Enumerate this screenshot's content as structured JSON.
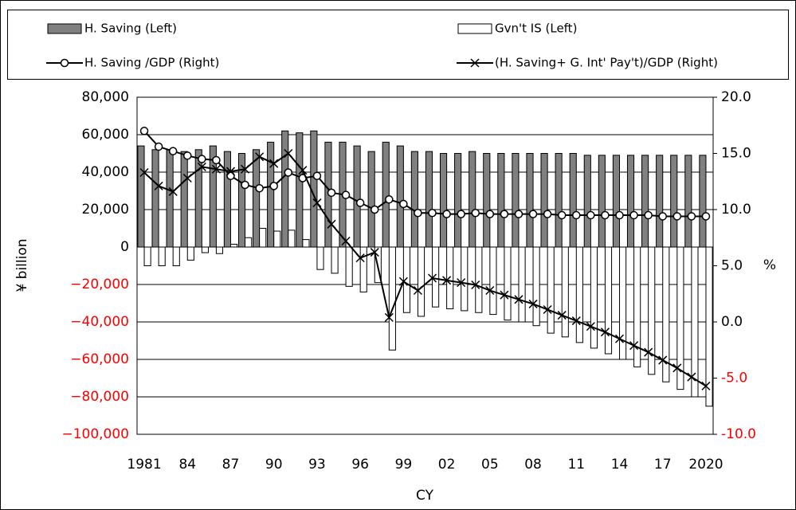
{
  "chart_data": {
    "type": "bar_line",
    "categories": [
      "1981",
      null,
      null,
      "84",
      null,
      null,
      "87",
      null,
      null,
      "90",
      null,
      null,
      "93",
      null,
      null,
      "96",
      null,
      null,
      "99",
      null,
      null,
      "02",
      null,
      null,
      "05",
      null,
      null,
      "08",
      null,
      null,
      "11",
      null,
      null,
      "14",
      null,
      null,
      "17",
      null,
      null,
      "2020"
    ],
    "series": [
      {
        "name": "H. Saving (Left)",
        "kind": "bar",
        "axis": "y",
        "color": "#808080",
        "values": [
          54000,
          52000,
          52000,
          51000,
          52000,
          54000,
          51000,
          50000,
          52000,
          56000,
          62000,
          61000,
          62000,
          56000,
          56000,
          54000,
          51000,
          56000,
          54000,
          51000,
          51000,
          50000,
          50000,
          51000,
          50000,
          50000,
          50000,
          50000,
          50000,
          50000,
          50000,
          49000,
          49000,
          49000,
          49000,
          49000,
          49000,
          49000,
          49000,
          49000
        ]
      },
      {
        "name": "Gvn't IS (Left)",
        "kind": "bar",
        "axis": "y",
        "color": "#ffffff",
        "values": [
          -10000,
          -10000,
          -10000,
          -7000,
          -3000,
          -3500,
          1500,
          5000,
          10000,
          8500,
          9000,
          4000,
          -12000,
          -14000,
          -21000,
          -24000,
          -19000,
          -55000,
          -35000,
          -37000,
          -32000,
          -33000,
          -34000,
          -35000,
          -36000,
          -39000,
          -40000,
          -42000,
          -46000,
          -48000,
          -51000,
          -54000,
          -57000,
          -60000,
          -64000,
          -68000,
          -72000,
          -76000,
          -80000,
          -85000
        ]
      },
      {
        "name": "H. Saving /GDP (Right)",
        "kind": "line",
        "marker": "circle",
        "axis": "y2",
        "color": "#000000",
        "values": [
          17.0,
          15.6,
          15.2,
          14.8,
          14.5,
          14.4,
          13.0,
          12.2,
          11.9,
          12.1,
          13.3,
          12.8,
          13.0,
          11.5,
          11.3,
          10.6,
          10.0,
          10.9,
          10.5,
          9.7,
          9.7,
          9.6,
          9.6,
          9.7,
          9.6,
          9.6,
          9.6,
          9.6,
          9.6,
          9.5,
          9.5,
          9.5,
          9.5,
          9.5,
          9.5,
          9.5,
          9.4,
          9.4,
          9.4,
          9.4
        ]
      },
      {
        "name": "(H. Saving+ G. Int' Pay't)/GDP (Right)",
        "kind": "line",
        "marker": "x",
        "axis": "y2",
        "color": "#000000",
        "values": [
          13.3,
          12.1,
          11.6,
          12.8,
          13.8,
          13.6,
          13.4,
          13.6,
          14.7,
          14.1,
          15.0,
          13.5,
          10.6,
          8.7,
          7.2,
          5.7,
          6.2,
          0.4,
          3.6,
          2.8,
          3.9,
          3.7,
          3.5,
          3.3,
          2.8,
          2.4,
          2.0,
          1.6,
          1.1,
          0.6,
          0.1,
          -0.4,
          -0.9,
          -1.5,
          -2.1,
          -2.7,
          -3.4,
          -4.1,
          -4.9,
          -5.7
        ]
      }
    ],
    "ylim": [
      -100000,
      80000
    ],
    "yticks": [
      {
        "value": -100000,
        "label": "−100,000"
      },
      {
        "value": -80000,
        "label": "−80,000"
      },
      {
        "value": -60000,
        "label": "−60,000"
      },
      {
        "value": -40000,
        "label": "−40,000"
      },
      {
        "value": -20000,
        "label": "−20,000"
      },
      0,
      {
        "value": 20000,
        "label": "20,000"
      },
      {
        "value": 40000,
        "label": "40,000"
      },
      {
        "value": 60000,
        "label": "60,000"
      },
      {
        "value": 80000,
        "label": "80,000"
      }
    ],
    "y2lim": [
      -10,
      20
    ],
    "y2ticks": [
      {
        "value": -10,
        "label": "-10.0"
      },
      {
        "value": -5,
        "label": "-5.0"
      },
      {
        "value": 0,
        "label": "0.0"
      },
      {
        "value": 5,
        "label": "5.0"
      },
      {
        "value": 10,
        "label": "10.0"
      },
      {
        "value": 15,
        "label": "15.0"
      },
      {
        "value": 20,
        "label": "20.0"
      }
    ],
    "negative_tick_color": "#ff0000",
    "ylabel": "¥ billion",
    "y2label": "%",
    "xlabel": "CY",
    "grid": true
  }
}
